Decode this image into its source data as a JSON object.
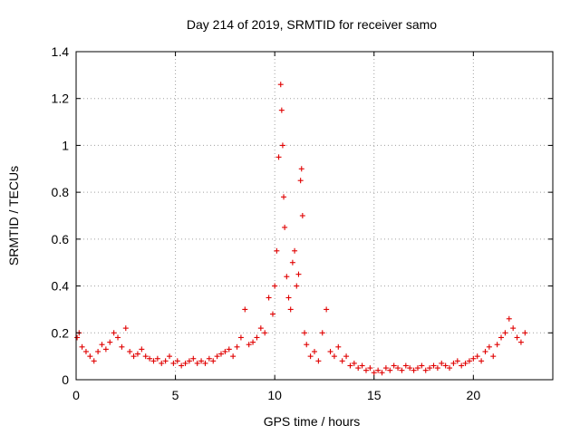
{
  "chart_data": {
    "type": "scatter",
    "title": "Day 214 of 2019, SRMTID for receiver samo",
    "xlabel": "GPS time / hours",
    "ylabel": "SRMTID / TECUs",
    "xlim": [
      0,
      24
    ],
    "ylim": [
      0,
      1.4
    ],
    "xticks": [
      0,
      5,
      10,
      15,
      20
    ],
    "xtick_labels": [
      "0",
      "5",
      "10",
      "15",
      "20"
    ],
    "yticks": [
      0,
      0.2,
      0.4,
      0.6,
      0.8,
      1.0,
      1.2,
      1.4
    ],
    "ytick_labels": [
      "0",
      "0.2",
      "0.4",
      "0.6",
      "0.8",
      "1",
      "1.2",
      "1.4"
    ],
    "grid": true,
    "marker": "+",
    "color": "#e00000",
    "series": [
      {
        "name": "SRMTID",
        "x": [
          0.05,
          0.15,
          0.3,
          0.5,
          0.7,
          0.9,
          1.1,
          1.3,
          1.5,
          1.7,
          1.9,
          2.1,
          2.3,
          2.5,
          2.7,
          2.9,
          3.1,
          3.3,
          3.5,
          3.7,
          3.9,
          4.1,
          4.3,
          4.5,
          4.7,
          4.9,
          5.1,
          5.3,
          5.5,
          5.7,
          5.9,
          6.1,
          6.3,
          6.5,
          6.7,
          6.9,
          7.1,
          7.3,
          7.5,
          7.7,
          7.9,
          8.1,
          8.3,
          8.5,
          8.7,
          8.9,
          9.1,
          9.3,
          9.5,
          9.7,
          9.9,
          10.0,
          10.1,
          10.2,
          10.3,
          10.35,
          10.4,
          10.45,
          10.5,
          10.6,
          10.7,
          10.8,
          10.9,
          11.0,
          11.1,
          11.2,
          11.3,
          11.35,
          11.4,
          11.5,
          11.6,
          11.8,
          12.0,
          12.2,
          12.4,
          12.6,
          12.8,
          13.0,
          13.2,
          13.4,
          13.6,
          13.8,
          14.0,
          14.2,
          14.4,
          14.6,
          14.8,
          15.0,
          15.2,
          15.4,
          15.6,
          15.8,
          16.0,
          16.2,
          16.4,
          16.6,
          16.8,
          17.0,
          17.2,
          17.4,
          17.6,
          17.8,
          18.0,
          18.2,
          18.4,
          18.6,
          18.8,
          19.0,
          19.2,
          19.4,
          19.6,
          19.8,
          20.0,
          20.2,
          20.4,
          20.6,
          20.8,
          21.0,
          21.2,
          21.4,
          21.6,
          21.8,
          22.0,
          22.2,
          22.4,
          22.6
        ],
        "y": [
          0.18,
          0.2,
          0.14,
          0.12,
          0.1,
          0.08,
          0.12,
          0.15,
          0.13,
          0.16,
          0.2,
          0.18,
          0.14,
          0.22,
          0.12,
          0.1,
          0.11,
          0.13,
          0.1,
          0.09,
          0.08,
          0.09,
          0.07,
          0.08,
          0.1,
          0.07,
          0.08,
          0.06,
          0.07,
          0.08,
          0.09,
          0.07,
          0.08,
          0.07,
          0.09,
          0.08,
          0.1,
          0.11,
          0.12,
          0.13,
          0.1,
          0.14,
          0.18,
          0.3,
          0.15,
          0.16,
          0.18,
          0.22,
          0.2,
          0.35,
          0.28,
          0.4,
          0.55,
          0.95,
          1.26,
          1.15,
          1.0,
          0.78,
          0.65,
          0.44,
          0.35,
          0.3,
          0.5,
          0.55,
          0.4,
          0.45,
          0.85,
          0.9,
          0.7,
          0.2,
          0.15,
          0.1,
          0.12,
          0.08,
          0.2,
          0.3,
          0.12,
          0.1,
          0.14,
          0.08,
          0.1,
          0.06,
          0.07,
          0.05,
          0.06,
          0.04,
          0.05,
          0.03,
          0.04,
          0.03,
          0.05,
          0.04,
          0.06,
          0.05,
          0.04,
          0.06,
          0.05,
          0.04,
          0.05,
          0.06,
          0.04,
          0.05,
          0.06,
          0.05,
          0.07,
          0.06,
          0.05,
          0.07,
          0.08,
          0.06,
          0.07,
          0.08,
          0.09,
          0.1,
          0.08,
          0.12,
          0.14,
          0.1,
          0.15,
          0.18,
          0.2,
          0.26,
          0.22,
          0.18,
          0.16,
          0.2
        ]
      }
    ]
  }
}
